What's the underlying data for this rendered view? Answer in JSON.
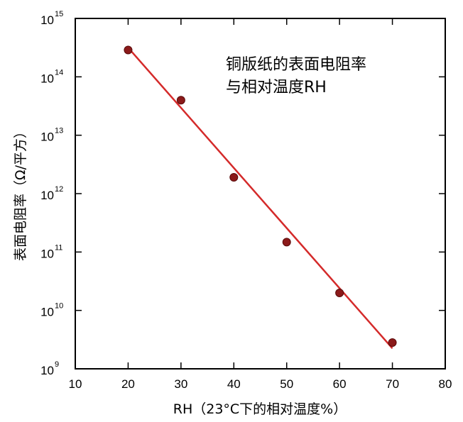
{
  "chart_data": {
    "type": "scatter",
    "title": "",
    "annotation_lines": [
      "铜版纸的表面电阻率",
      "与相对温度RH"
    ],
    "xlabel": "RH（23°C下的相对温度%）",
    "ylabel": "表面电阻率（Ω/平方）",
    "xlim": [
      10,
      80
    ],
    "ylim_log10": [
      9,
      15
    ],
    "y_scale": "log",
    "x_ticks": [
      10,
      20,
      30,
      40,
      50,
      60,
      70,
      80
    ],
    "x_tick_labels": [
      "10",
      "20",
      "30",
      "40",
      "50",
      "60",
      "70",
      "80"
    ],
    "y_ticks_log10": [
      9,
      10,
      11,
      12,
      13,
      14,
      15
    ],
    "y_tick_base": "10",
    "y_tick_exponents": [
      "9",
      "10",
      "11",
      "12",
      "13",
      "14",
      "15"
    ],
    "grid": false,
    "series": [
      {
        "x": [
          20,
          30,
          40,
          50,
          60,
          70
        ],
        "y_log10": [
          14.46,
          13.6,
          12.28,
          11.17,
          10.3,
          9.45
        ],
        "color": "#8b1a1a"
      }
    ],
    "fit_line": {
      "x": [
        20,
        70
      ],
      "y_log10": [
        14.5,
        9.35
      ],
      "color": "#d42a2a"
    }
  }
}
